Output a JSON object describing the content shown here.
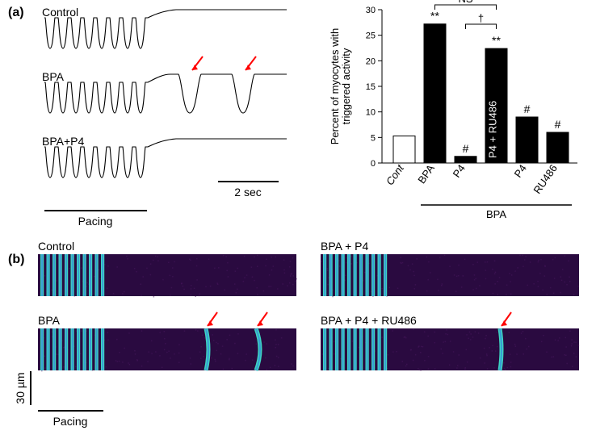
{
  "panel_a": {
    "label": "(a)",
    "traces": {
      "labels": [
        "Control",
        "BPA",
        "BPA+P4"
      ],
      "pacing_label": "Pacing",
      "scalebar_label": "2 sec",
      "stroke": "#000000",
      "stroke_width": 1.1,
      "arrow_color": "#ff0000"
    },
    "bar_chart": {
      "ylabel": "Percent of myocytes with\ntriggered activity",
      "ylim": [
        0,
        30
      ],
      "ytick_step": 5,
      "categories": [
        "Cont",
        "BPA",
        "P4",
        "P4 + RU486",
        "P4",
        "RU486"
      ],
      "values": [
        5.3,
        27.2,
        1.3,
        22.4,
        9.0,
        6.0
      ],
      "bar_fill": [
        "#ffffff",
        "#000000",
        "#000000",
        "#000000",
        "#000000",
        "#000000"
      ],
      "bar_label_colors": [
        "#000000",
        "#000000",
        "#000000",
        "#ffffff",
        "#000000",
        "#000000"
      ],
      "markers": [
        "",
        "**",
        "#",
        "**",
        "#",
        "#"
      ],
      "bracket_labels": {
        "ns": "NS",
        "dag": "†"
      },
      "group_label": "BPA",
      "axis_color": "#000000",
      "font_size": 12
    }
  },
  "panel_b": {
    "label": "(b)",
    "titles": [
      "Control",
      "BPA + P4",
      "BPA",
      "BPA + P4 + RU486"
    ],
    "scalebar_label": "30 µm",
    "pacing_label": "Pacing",
    "arrow_color": "#ff0000",
    "colors": {
      "bg": "#2a0a40",
      "stripe": "#3dd4c0",
      "stripe_core": "#3478e0",
      "noise": "#4a1860"
    }
  }
}
